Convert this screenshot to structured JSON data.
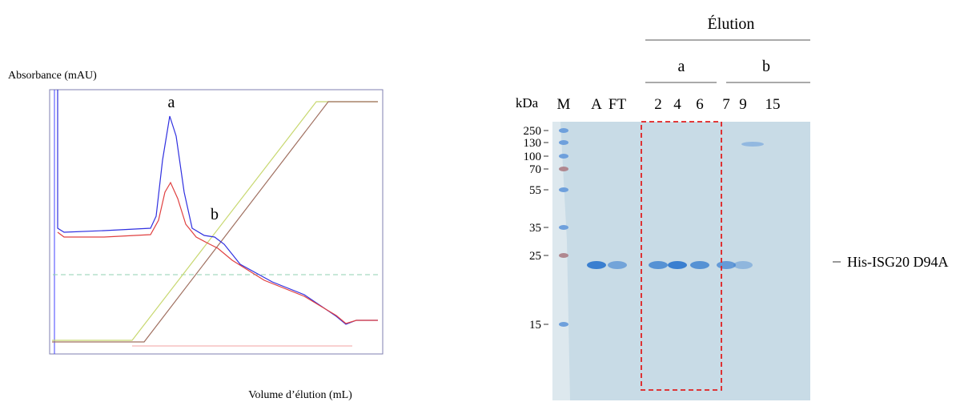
{
  "chromatogram": {
    "y_label": "Absorbance (mAU)",
    "x_label": "Volume d’élution (mL)",
    "peaks": [
      "a",
      "b"
    ]
  },
  "gel": {
    "header": "Élution",
    "groups": [
      "a",
      "b"
    ],
    "kda_label": "kDa",
    "lanes": [
      "M",
      "A",
      "FT",
      "2",
      "4",
      "6",
      "7",
      "9",
      "15"
    ],
    "markers": [
      "250",
      "130",
      "100",
      "70",
      "55",
      "35",
      "25",
      "15"
    ],
    "band_label": "His-ISG20 D94A"
  }
}
